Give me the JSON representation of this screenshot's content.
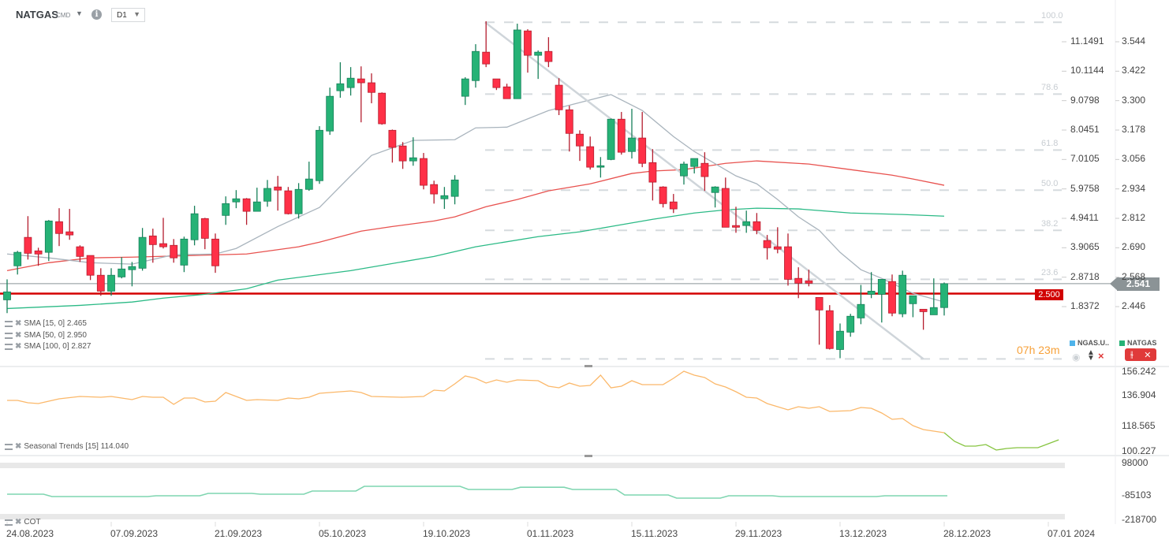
{
  "header": {
    "symbol": "NATGAS",
    "type": "CMD",
    "timeframe": "D1",
    "info_icon": "i"
  },
  "colors": {
    "up": "#26b276",
    "up_border": "#17805a",
    "down": "#ff3047",
    "down_border": "#b41d2e",
    "sma15": "#a9b4bd",
    "sma50": "#e8524f",
    "sma100": "#2bba86",
    "hline": "#d40000",
    "seasonal": "#fbb86a",
    "seasonal_forecast": "#86c440",
    "cot": "#7fd5b0",
    "accent_orange": "#f7a13a"
  },
  "indicators": {
    "sma15": "SMA [15, 0] 2.465",
    "sma50": "SMA [50, 0] 2.950",
    "sma100": "SMA [100, 0] 2.827",
    "seasonal": "Seasonal  Trends  [15]  114.040",
    "cot": "COT"
  },
  "price_axis": [
    "3.544",
    "3.422",
    "3.300",
    "3.178",
    "3.056",
    "2.934",
    "2.812",
    "2.690",
    "2.568",
    "2.446"
  ],
  "secondary_axis": [
    "11.1491",
    "10.1144",
    "9.0798",
    "8.0451",
    "7.0105",
    "5.9758",
    "4.9411",
    "3.9065",
    "2.8718",
    "1.8372"
  ],
  "current_price": "2.541",
  "hline_label": "2.500",
  "countdown": "07h 23m",
  "fib_labels": [
    {
      "label": "100.0",
      "price": 3.625
    },
    {
      "label": "78.6",
      "price": 3.327
    },
    {
      "label": "61.8",
      "price": 3.095
    },
    {
      "label": "50.0",
      "price": 2.929
    },
    {
      "label": "38.2",
      "price": 2.762
    },
    {
      "label": "23.6",
      "price": 2.559
    },
    {
      "label": "",
      "price": 2.229
    }
  ],
  "instruments": {
    "secondary": "NGAS.U..",
    "primary": "NATGAS"
  },
  "seasonal_axis": [
    "156.242",
    "136.904",
    "118.565",
    "100.227"
  ],
  "cot_axis": [
    "98000",
    "-85103",
    "-218700"
  ],
  "dates": [
    {
      "label": "24.08.2023",
      "i": 1
    },
    {
      "label": "07.09.2023",
      "i": 11
    },
    {
      "label": "21.09.2023",
      "i": 21
    },
    {
      "label": "05.10.2023",
      "i": 31
    },
    {
      "label": "19.10.2023",
      "i": 41
    },
    {
      "label": "01.11.2023",
      "i": 51
    },
    {
      "label": "15.11.2023",
      "i": 61
    },
    {
      "label": "29.11.2023",
      "i": 71
    },
    {
      "label": "13.12.2023",
      "i": 81
    },
    {
      "label": "28.12.2023",
      "i": 91
    },
    {
      "label": "07.01 2024",
      "i": 101
    }
  ],
  "chart_data": {
    "type": "candlestick",
    "title": "NATGAS D1",
    "ylim": [
      2.2,
      3.65
    ],
    "hline": 2.5,
    "last": 2.541,
    "ohlc": [
      [
        2.474,
        2.559,
        2.419,
        2.507
      ],
      [
        2.615,
        2.677,
        2.579,
        2.671
      ],
      [
        2.733,
        2.821,
        2.641,
        2.667
      ],
      [
        2.677,
        2.69,
        2.615,
        2.664
      ],
      [
        2.671,
        2.805,
        2.635,
        2.801
      ],
      [
        2.798,
        2.854,
        2.697,
        2.749
      ],
      [
        2.756,
        2.851,
        2.723,
        2.743
      ],
      [
        2.694,
        2.7,
        2.631,
        2.654
      ],
      [
        2.658,
        2.658,
        2.556,
        2.576
      ],
      [
        2.576,
        2.605,
        2.491,
        2.51
      ],
      [
        2.51,
        2.605,
        2.491,
        2.576
      ],
      [
        2.569,
        2.651,
        2.563,
        2.602
      ],
      [
        2.599,
        2.631,
        2.53,
        2.612
      ],
      [
        2.605,
        2.772,
        2.595,
        2.733
      ],
      [
        2.739,
        2.769,
        2.628,
        2.703
      ],
      [
        2.707,
        2.814,
        2.687,
        2.694
      ],
      [
        2.7,
        2.726,
        2.628,
        2.648
      ],
      [
        2.618,
        2.736,
        2.589,
        2.726
      ],
      [
        2.723,
        2.864,
        2.7,
        2.831
      ],
      [
        2.811,
        2.814,
        2.684,
        2.729
      ],
      [
        2.726,
        2.749,
        2.586,
        2.615
      ],
      [
        2.824,
        2.903,
        2.785,
        2.873
      ],
      [
        2.88,
        2.929,
        2.854,
        2.893
      ],
      [
        2.893,
        2.896,
        2.785,
        2.841
      ],
      [
        2.841,
        2.939,
        2.841,
        2.88
      ],
      [
        2.883,
        2.971,
        2.86,
        2.936
      ],
      [
        2.942,
        2.988,
        2.844,
        2.929
      ],
      [
        2.926,
        2.942,
        2.828,
        2.831
      ],
      [
        2.831,
        2.958,
        2.811,
        2.932
      ],
      [
        2.932,
        3.047,
        2.926,
        2.975
      ],
      [
        2.968,
        3.194,
        2.955,
        3.177
      ],
      [
        3.174,
        3.354,
        3.158,
        3.318
      ],
      [
        3.341,
        3.459,
        3.312,
        3.37
      ],
      [
        3.354,
        3.439,
        3.321,
        3.393
      ],
      [
        3.39,
        3.442,
        3.21,
        3.374
      ],
      [
        3.374,
        3.413,
        3.289,
        3.334
      ],
      [
        3.331,
        3.334,
        3.2,
        3.204
      ],
      [
        3.177,
        3.18,
        3.043,
        3.106
      ],
      [
        3.112,
        3.128,
        3.017,
        3.05
      ],
      [
        3.05,
        3.148,
        3.03,
        3.063
      ],
      [
        3.06,
        3.083,
        2.932,
        2.949
      ],
      [
        2.952,
        2.968,
        2.873,
        2.913
      ],
      [
        2.893,
        2.942,
        2.851,
        2.906
      ],
      [
        2.903,
        2.991,
        2.87,
        2.971
      ],
      [
        3.318,
        3.397,
        3.282,
        3.39
      ],
      [
        3.383,
        3.534,
        3.354,
        3.504
      ],
      [
        3.501,
        3.629,
        3.439,
        3.452
      ],
      [
        3.39,
        3.39,
        3.344,
        3.354
      ],
      [
        3.357,
        3.37,
        3.308,
        3.308
      ],
      [
        3.308,
        3.619,
        3.308,
        3.593
      ],
      [
        3.589,
        3.596,
        3.416,
        3.488
      ],
      [
        3.488,
        3.508,
        3.39,
        3.501
      ],
      [
        3.504,
        3.563,
        3.439,
        3.462
      ],
      [
        3.364,
        3.393,
        3.24,
        3.262
      ],
      [
        3.262,
        3.279,
        3.089,
        3.164
      ],
      [
        3.161,
        3.177,
        3.05,
        3.112
      ],
      [
        3.109,
        3.151,
        3.014,
        3.024
      ],
      [
        3.024,
        3.066,
        2.981,
        3.03
      ],
      [
        3.056,
        3.226,
        3.053,
        3.223
      ],
      [
        3.223,
        3.253,
        3.076,
        3.086
      ],
      [
        3.089,
        3.266,
        3.06,
        3.145
      ],
      [
        3.145,
        3.253,
        3.024,
        3.04
      ],
      [
        3.043,
        3.099,
        2.886,
        2.962
      ],
      [
        2.942,
        2.945,
        2.857,
        2.873
      ],
      [
        2.88,
        2.913,
        2.834,
        2.851
      ],
      [
        2.988,
        3.047,
        2.952,
        3.037
      ],
      [
        3.027,
        3.06,
        2.998,
        3.06
      ],
      [
        3.04,
        3.086,
        2.926,
        2.985
      ],
      [
        2.919,
        2.945,
        2.857,
        2.942
      ],
      [
        2.936,
        2.981,
        2.775,
        2.775
      ],
      [
        2.782,
        2.86,
        2.752,
        2.775
      ],
      [
        2.782,
        2.844,
        2.752,
        2.798
      ],
      [
        2.798,
        2.834,
        2.746,
        2.762
      ],
      [
        2.72,
        2.743,
        2.641,
        2.69
      ],
      [
        2.694,
        2.775,
        2.667,
        2.684
      ],
      [
        2.694,
        2.749,
        2.533,
        2.559
      ],
      [
        2.563,
        2.609,
        2.481,
        2.543
      ],
      [
        2.553,
        2.599,
        2.53,
        2.543
      ],
      [
        2.484,
        2.484,
        2.288,
        2.432
      ],
      [
        2.429,
        2.452,
        2.268,
        2.272
      ],
      [
        2.268,
        2.376,
        2.232,
        2.344
      ],
      [
        2.34,
        2.416,
        2.321,
        2.406
      ],
      [
        2.399,
        2.536,
        2.373,
        2.455
      ],
      [
        2.497,
        2.589,
        2.481,
        2.51
      ],
      [
        2.497,
        2.559,
        2.38,
        2.559
      ],
      [
        2.55,
        2.579,
        2.406,
        2.419
      ],
      [
        2.416,
        2.595,
        2.402,
        2.576
      ],
      [
        2.458,
        2.491,
        2.402,
        2.491
      ],
      [
        2.435,
        2.435,
        2.35,
        2.425
      ],
      [
        2.412,
        2.563,
        2.412,
        2.442
      ],
      [
        2.442,
        2.546,
        2.409,
        2.541
      ]
    ],
    "sma15": [
      [
        1,
        2.664
      ],
      [
        5,
        2.648
      ],
      [
        9,
        2.628
      ],
      [
        13,
        2.622
      ],
      [
        17,
        2.661
      ],
      [
        21,
        2.664
      ],
      [
        23,
        2.687
      ],
      [
        27,
        2.778
      ],
      [
        31,
        2.857
      ],
      [
        34,
        2.988
      ],
      [
        36,
        3.073
      ],
      [
        40,
        3.135
      ],
      [
        44,
        3.138
      ],
      [
        46,
        3.187
      ],
      [
        49,
        3.19
      ],
      [
        53,
        3.259
      ],
      [
        56,
        3.292
      ],
      [
        59,
        3.325
      ],
      [
        62,
        3.259
      ],
      [
        65,
        3.151
      ],
      [
        67,
        3.089
      ],
      [
        71,
        2.988
      ],
      [
        73,
        2.955
      ],
      [
        75,
        2.89
      ],
      [
        77,
        2.818
      ],
      [
        79,
        2.762
      ],
      [
        81,
        2.671
      ],
      [
        83,
        2.599
      ],
      [
        85,
        2.563
      ],
      [
        88,
        2.501
      ],
      [
        91,
        2.465
      ]
    ],
    "sma50": [
      [
        1,
        2.595
      ],
      [
        5,
        2.628
      ],
      [
        9,
        2.648
      ],
      [
        13,
        2.651
      ],
      [
        24,
        2.664
      ],
      [
        29,
        2.694
      ],
      [
        31,
        2.713
      ],
      [
        35,
        2.759
      ],
      [
        38,
        2.778
      ],
      [
        42,
        2.801
      ],
      [
        44,
        2.818
      ],
      [
        47,
        2.86
      ],
      [
        50,
        2.89
      ],
      [
        53,
        2.926
      ],
      [
        57,
        2.955
      ],
      [
        61,
        2.998
      ],
      [
        63,
        3.008
      ],
      [
        66,
        3.014
      ],
      [
        70,
        3.04
      ],
      [
        73,
        3.05
      ],
      [
        78,
        3.037
      ],
      [
        82,
        3.014
      ],
      [
        86,
        2.991
      ],
      [
        88,
        2.975
      ],
      [
        91,
        2.949
      ]
    ],
    "sma100": [
      [
        1,
        2.438
      ],
      [
        8,
        2.451
      ],
      [
        13,
        2.465
      ],
      [
        16,
        2.481
      ],
      [
        20,
        2.497
      ],
      [
        24,
        2.52
      ],
      [
        27,
        2.556
      ],
      [
        34,
        2.595
      ],
      [
        42,
        2.654
      ],
      [
        46,
        2.694
      ],
      [
        52,
        2.736
      ],
      [
        56,
        2.756
      ],
      [
        59,
        2.778
      ],
      [
        63,
        2.808
      ],
      [
        67,
        2.834
      ],
      [
        70,
        2.847
      ],
      [
        73,
        2.854
      ],
      [
        77,
        2.851
      ],
      [
        82,
        2.834
      ],
      [
        87,
        2.828
      ],
      [
        91,
        2.821
      ]
    ],
    "trendline": [
      [
        46.9,
        3.625
      ],
      [
        89,
        2.229
      ]
    ],
    "seasonal": [
      [
        1,
        134.08
      ],
      [
        2,
        134.08
      ],
      [
        3,
        132.67
      ],
      [
        4,
        132.2
      ],
      [
        5,
        133.61
      ],
      [
        6,
        135.02
      ],
      [
        8,
        136.43
      ],
      [
        10,
        135.96
      ],
      [
        11,
        136.43
      ],
      [
        13,
        134.55
      ],
      [
        14,
        136.43
      ],
      [
        15,
        135.96
      ],
      [
        16,
        135.96
      ],
      [
        17,
        131.73
      ],
      [
        18,
        135.49
      ],
      [
        19,
        135.49
      ],
      [
        20,
        133.14
      ],
      [
        21,
        133.61
      ],
      [
        22,
        138.78
      ],
      [
        24,
        134.08
      ],
      [
        25,
        134.55
      ],
      [
        27,
        134.08
      ],
      [
        28,
        135.49
      ],
      [
        29,
        135.02
      ],
      [
        30,
        135.96
      ],
      [
        31,
        138.31
      ],
      [
        34,
        139.73
      ],
      [
        35,
        138.78
      ],
      [
        36,
        136.43
      ],
      [
        39,
        135.96
      ],
      [
        41,
        136.43
      ],
      [
        42,
        140.2
      ],
      [
        43,
        139.73
      ],
      [
        44,
        143.96
      ],
      [
        45,
        148.66
      ],
      [
        46,
        147.25
      ],
      [
        47,
        144.43
      ],
      [
        48,
        146.31
      ],
      [
        49,
        144.9
      ],
      [
        50,
        146.31
      ],
      [
        52,
        145.84
      ],
      [
        53,
        142.55
      ],
      [
        54,
        141.61
      ],
      [
        55,
        144.43
      ],
      [
        56,
        142.55
      ],
      [
        57,
        143.02
      ],
      [
        58,
        149.13
      ],
      [
        59,
        141.61
      ],
      [
        60,
        142.55
      ],
      [
        61,
        145.84
      ],
      [
        62,
        143.49
      ],
      [
        64,
        143.49
      ],
      [
        65,
        147.25
      ],
      [
        66,
        151.48
      ],
      [
        67,
        149.13
      ],
      [
        68,
        147.72
      ],
      [
        69,
        143.96
      ],
      [
        70,
        142.08
      ],
      [
        71,
        139.26
      ],
      [
        72,
        135.96
      ],
      [
        73,
        135.49
      ],
      [
        74,
        132.2
      ],
      [
        76,
        128.44
      ],
      [
        77,
        130.32
      ],
      [
        78,
        129.38
      ],
      [
        79,
        130.32
      ],
      [
        80,
        127.5
      ],
      [
        82,
        127.97
      ],
      [
        83,
        129.85
      ],
      [
        84,
        129.38
      ],
      [
        85,
        126.56
      ],
      [
        86,
        122.8
      ],
      [
        87,
        123.27
      ],
      [
        88,
        119.04
      ],
      [
        89,
        116.69
      ],
      [
        90,
        115.75
      ],
      [
        91,
        114.81
      ]
    ],
    "seasonal_forecast": [
      [
        91,
        114.81
      ],
      [
        92,
        109.63
      ],
      [
        93,
        106.81
      ],
      [
        94,
        106.81
      ],
      [
        95,
        107.75
      ],
      [
        96,
        104.46
      ],
      [
        97,
        105.4
      ],
      [
        98,
        105.87
      ],
      [
        100,
        105.87
      ],
      [
        101,
        108.22
      ],
      [
        102,
        110.57
      ]
    ],
    "cot": [
      [
        1,
        -76171
      ],
      [
        5,
        -89569
      ],
      [
        15,
        -85103
      ],
      [
        20,
        -71705
      ],
      [
        25,
        -76171
      ],
      [
        30,
        -58307
      ],
      [
        35,
        -31511
      ],
      [
        45,
        -49375
      ],
      [
        50,
        -36977
      ],
      [
        55,
        -49375
      ],
      [
        60,
        -80637
      ],
      [
        65,
        -98501
      ],
      [
        70,
        -85103
      ],
      [
        75,
        -89569
      ],
      [
        85,
        -85103
      ],
      [
        91,
        -85103
      ]
    ]
  }
}
